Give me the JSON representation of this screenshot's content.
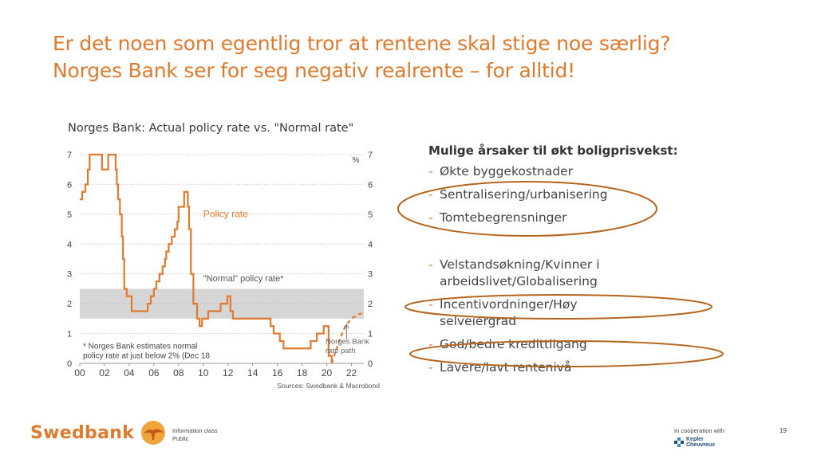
{
  "slide": {
    "title_line1": "Er det noen som egentlig tror at rentene skal stige noe særlig?",
    "title_line2": "Norges Bank ser for seg negativ realrente – for alltid!"
  },
  "reasons": {
    "heading": "Mulige årsaker til økt boligprisvekst:",
    "group1": [
      "Økte byggekostnader",
      "Sentralisering/urbanisering",
      "Tomtebegrensninger"
    ],
    "group2": [
      "Velstandsøkning/Kvinner i arbeidslivet/Globalisering",
      "Incentivordninger/Høy selveiergrad",
      "God/bedre kredittilgang",
      "Lavere/lavt rentenivå"
    ],
    "dash": "-"
  },
  "footer": {
    "brand": "Swedbank",
    "info_class_label": "Information class",
    "info_class_value": "Public",
    "cooperation": "In cooperation with",
    "partner_line1": "Kepler",
    "partner_line2": "Cheuvreux",
    "page_number": "19"
  },
  "colors": {
    "accent": "#e07a2e",
    "policy_line": "#e07a2e",
    "normal_band": "#d6d6d6",
    "partner": "#1f4e79"
  },
  "chart_data": {
    "type": "line",
    "title": "Norges Bank: Actual policy rate vs. \"Normal rate\"",
    "unit_label": "%",
    "x_ticks": [
      "00",
      "02",
      "04",
      "06",
      "08",
      "10",
      "12",
      "14",
      "16",
      "18",
      "20",
      "22"
    ],
    "xlim": [
      2000,
      2023
    ],
    "y_ticks": [
      "0",
      "1",
      "2",
      "3",
      "4",
      "5",
      "6",
      "7"
    ],
    "ylim": [
      0,
      7
    ],
    "grid": "horizontal dotted",
    "normal_band": [
      1.5,
      2.5
    ],
    "series": [
      {
        "name": "Policy rate",
        "style": "solid",
        "step": true,
        "x": [
          2000.0,
          2000.2,
          2000.45,
          2000.65,
          2000.8,
          2001.0,
          2001.8,
          2002.3,
          2002.5,
          2002.9,
          2003.0,
          2003.1,
          2003.25,
          2003.4,
          2003.5,
          2003.6,
          2003.8,
          2004.2,
          2005.5,
          2005.75,
          2006.0,
          2006.2,
          2006.45,
          2006.7,
          2006.9,
          2007.0,
          2007.2,
          2007.45,
          2007.7,
          2007.9,
          2008.0,
          2008.45,
          2008.75,
          2008.85,
          2009.0,
          2009.2,
          2009.5,
          2009.7,
          2009.9,
          2010.4,
          2011.4,
          2011.95,
          2012.2,
          2012.4,
          2014.95,
          2015.45,
          2015.7,
          2016.2,
          2016.5,
          2018.7,
          2019.2,
          2019.75,
          2020.15,
          2020.4
        ],
        "y": [
          5.5,
          5.75,
          6.0,
          6.5,
          7.0,
          7.0,
          6.5,
          7.0,
          7.0,
          6.5,
          6.0,
          5.5,
          5.0,
          4.25,
          3.5,
          2.5,
          2.25,
          1.75,
          2.0,
          2.25,
          2.5,
          2.75,
          3.0,
          3.25,
          3.5,
          3.75,
          4.0,
          4.25,
          4.5,
          4.75,
          5.25,
          5.75,
          5.25,
          4.5,
          3.0,
          2.0,
          1.5,
          1.25,
          1.5,
          1.75,
          2.0,
          2.25,
          1.75,
          1.5,
          1.5,
          1.25,
          1.0,
          0.75,
          0.5,
          0.75,
          1.0,
          1.25,
          0.25,
          0.0
        ]
      },
      {
        "name": "Norges Bank rate path",
        "style": "dashed",
        "x": [
          2020.4,
          2021.0,
          2021.5,
          2022.0,
          2022.6,
          2023.0
        ],
        "y": [
          0.0,
          0.75,
          1.25,
          1.5,
          1.65,
          1.7
        ]
      }
    ],
    "annotations": {
      "policy_rate": "Policy rate",
      "normal_rate": "\"Normal\" policy rate*",
      "rate_path_line1": "Norges Bank",
      "rate_path_line2": "rate path",
      "footnote_line1": "* Norges Bank estimates normal",
      "footnote_line2": "policy rate at just below 2% (Dec 18",
      "sources": "Sources: Swedbank & Macrobond"
    }
  }
}
